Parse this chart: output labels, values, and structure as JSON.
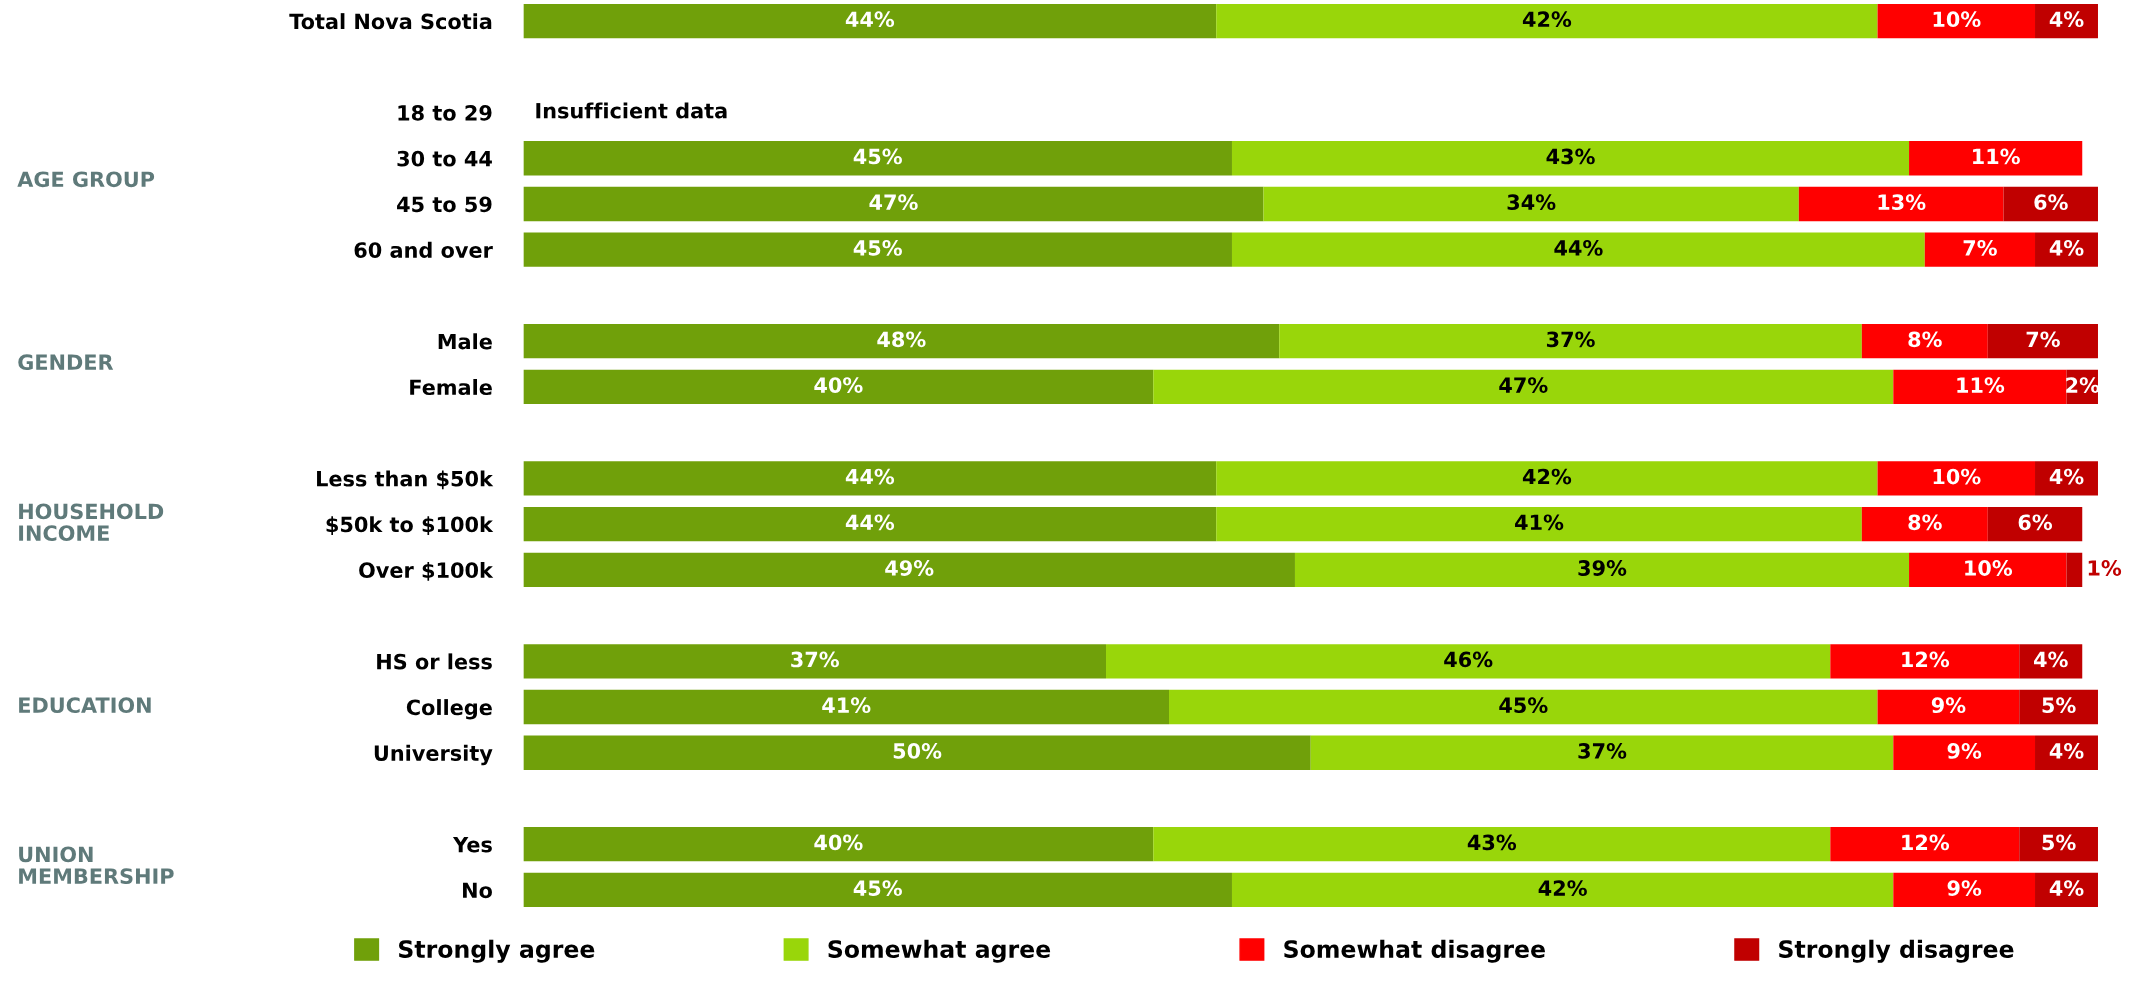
{
  "chart_data": {
    "type": "bar",
    "orientation": "horizontal",
    "stacked": true,
    "legend": "bottom",
    "grid": false,
    "categories": [
      "Total Nova Scotia",
      null,
      "18 to 29",
      "30 to 44",
      "45 to 59",
      "60 and over",
      null,
      "Male",
      "Female",
      null,
      "Less than $50k",
      "$50k to $100k",
      "Over $100k",
      null,
      "HS or less",
      "College",
      "University",
      null,
      "Yes",
      "No"
    ],
    "series": [
      {
        "name": "Strongly agree",
        "color": "#70a00a",
        "values": [
          44,
          null,
          null,
          45,
          47,
          45,
          null,
          48,
          40,
          null,
          44,
          44,
          49,
          null,
          37,
          41,
          50,
          null,
          40,
          45
        ],
        "value_labels": [
          "44%",
          null,
          null,
          "45%",
          "47%",
          "45%",
          null,
          "48%",
          "40%",
          null,
          "44%",
          "44%",
          "49%",
          null,
          "37%",
          "41%",
          "50%",
          null,
          "40%",
          "45%"
        ]
      },
      {
        "name": "Somewhat agree",
        "color": "#99d60a",
        "values": [
          42,
          null,
          null,
          43,
          34,
          44,
          null,
          37,
          47,
          null,
          42,
          41,
          39,
          null,
          46,
          45,
          37,
          null,
          43,
          42
        ],
        "value_labels": [
          "42%",
          null,
          null,
          "43%",
          "34%",
          "44%",
          null,
          "37%",
          "47%",
          null,
          "42%",
          "41%",
          "39%",
          null,
          "46%",
          "45%",
          "37%",
          null,
          "43%",
          "42%"
        ]
      },
      {
        "name": "Somewhat disagree",
        "color": "#ff0000",
        "values": [
          10,
          null,
          null,
          11,
          13,
          7,
          null,
          8,
          11,
          null,
          10,
          8,
          10,
          null,
          12,
          9,
          9,
          null,
          12,
          9
        ],
        "value_labels": [
          "10%",
          null,
          null,
          "11%",
          "13%",
          "7%",
          null,
          "8%",
          "11%",
          null,
          "10%",
          "8%",
          "10%",
          null,
          "12%",
          "9%",
          "9%",
          null,
          "12%",
          "9%"
        ]
      },
      {
        "name": "Strongly disagree",
        "color": "#c00000",
        "values": [
          4,
          null,
          null,
          null,
          6,
          4,
          null,
          7,
          2,
          null,
          4,
          6,
          1,
          null,
          4,
          5,
          4,
          null,
          5,
          4
        ],
        "value_labels": [
          "4%",
          null,
          null,
          null,
          "6%",
          "4%",
          null,
          "7%",
          "2%",
          null,
          "4%",
          "6%",
          "1%",
          null,
          "4%",
          "5%",
          "4%",
          null,
          "5%",
          "4%"
        ]
      }
    ],
    "annotations": [
      "Insufficient data",
      "AGE GROUP",
      "GENDER",
      "HOUSEHOLD\nINCOME",
      "EDUCATION",
      "UNION\nMEMBERSHIP"
    ]
  }
}
